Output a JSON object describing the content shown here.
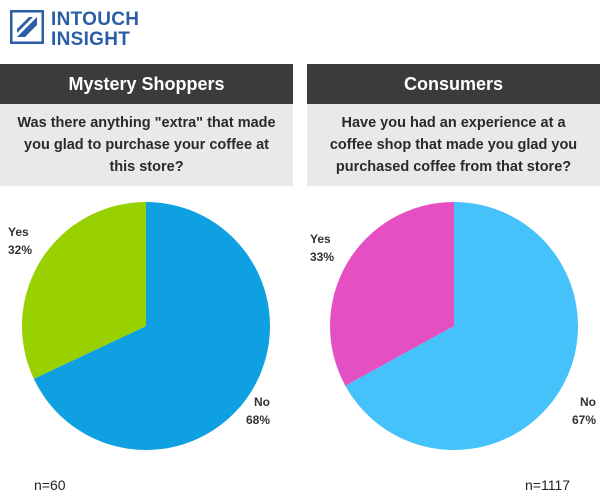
{
  "brand": {
    "line1": "INTOUCH",
    "line2": "INSIGHT",
    "color": "#2b5ea7"
  },
  "panels": [
    {
      "title": "Mystery Shoppers",
      "question": "Was there anything \"extra\" that made you glad to purchase your coffee at this store?",
      "sample": "n=60"
    },
    {
      "title": "Consumers",
      "question": "Have you had an experience at a coffee shop that made you glad you purchased coffee from that store?",
      "sample": "n=1117"
    }
  ],
  "chart_data": [
    {
      "type": "pie",
      "title": "Mystery Shoppers",
      "slices": [
        {
          "label": "No",
          "value": 68,
          "text": "68%",
          "color": "#0ea0e0"
        },
        {
          "label": "Yes",
          "value": 32,
          "text": "32%",
          "color": "#99d100"
        }
      ]
    },
    {
      "type": "pie",
      "title": "Consumers",
      "slices": [
        {
          "label": "No",
          "value": 67,
          "text": "67%",
          "color": "#45c2fa"
        },
        {
          "label": "Yes",
          "value": 33,
          "text": "33%",
          "color": "#e44fc1"
        }
      ]
    }
  ]
}
